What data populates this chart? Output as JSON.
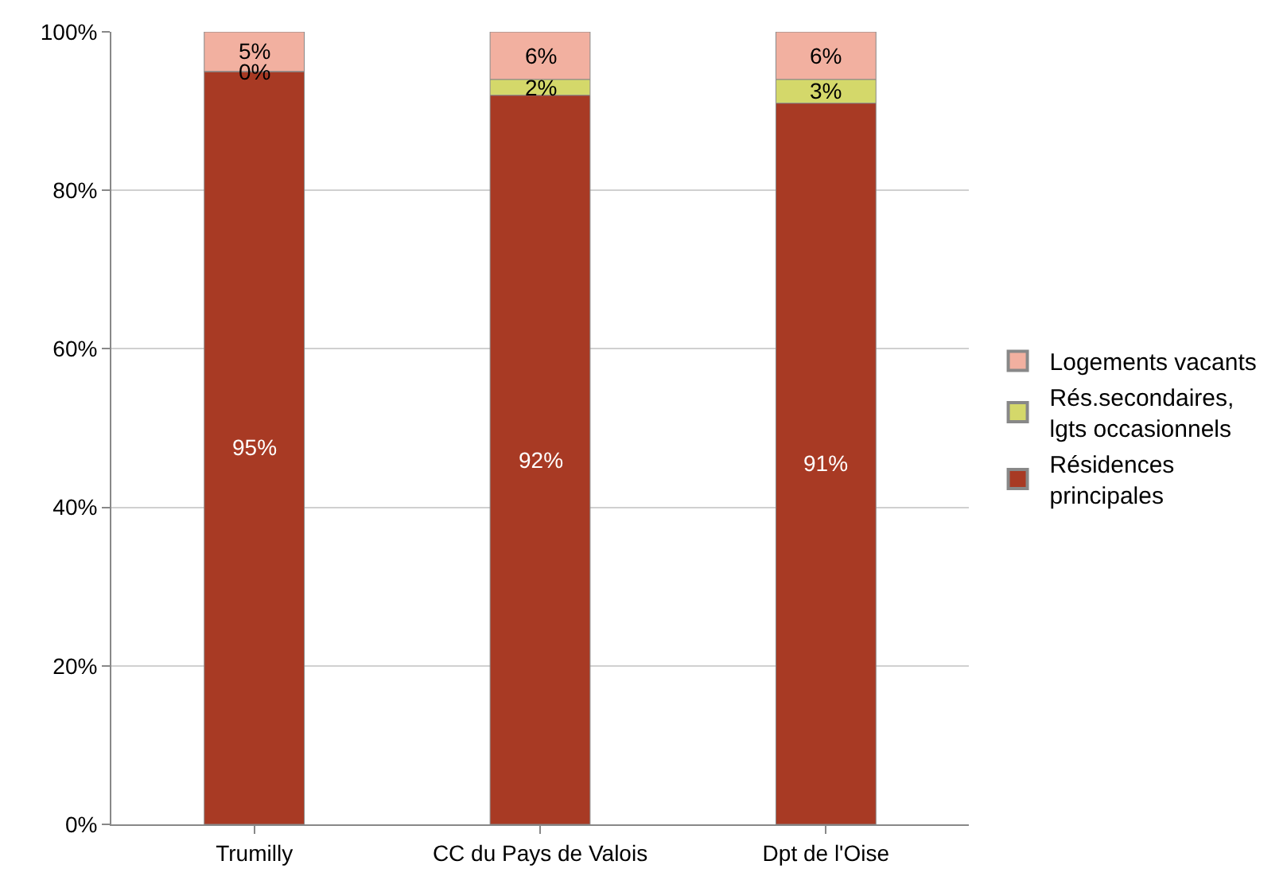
{
  "chart_data": {
    "type": "bar",
    "stacked": true,
    "categories": [
      "Trumilly",
      "CC du Pays de Valois",
      "Dpt de l'Oise"
    ],
    "series": [
      {
        "name": "Résidences principales",
        "color": "#a83a24",
        "values": [
          95,
          92,
          91
        ],
        "value_labels": [
          "95%",
          "92%",
          "91%"
        ]
      },
      {
        "name": "Rés.secondaires, lgts occasionnels",
        "color": "#d4d86a",
        "values": [
          0,
          2,
          3
        ],
        "value_labels": [
          "0%",
          "2%",
          "3%"
        ]
      },
      {
        "name": "Logements vacants",
        "color": "#f2b0a0",
        "values": [
          5,
          6,
          6
        ],
        "value_labels": [
          "5%",
          "6%",
          "6%"
        ]
      }
    ],
    "ylim": [
      0,
      100
    ],
    "yticks": [
      {
        "value": 0,
        "label": "0%"
      },
      {
        "value": 20,
        "label": "20%"
      },
      {
        "value": 40,
        "label": "40%"
      },
      {
        "value": 60,
        "label": "60%"
      },
      {
        "value": 80,
        "label": "80%"
      },
      {
        "value": 100,
        "label": "100%"
      }
    ],
    "grid": "y",
    "legend": "right"
  }
}
